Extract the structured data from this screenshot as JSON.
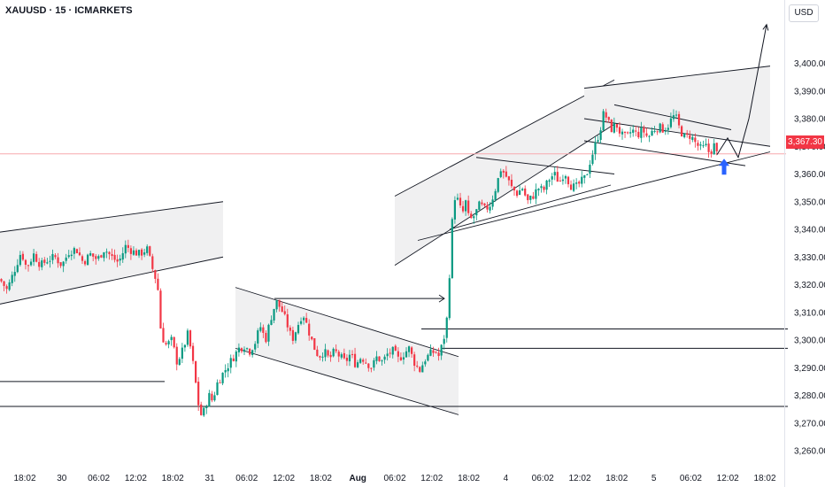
{
  "header": {
    "title": "XAUUSD · 15 · ICMARKETS",
    "currency": "USD"
  },
  "current_price_label": "3,367.30",
  "colors": {
    "up": "#089981",
    "down": "#f23645",
    "channel_fill": "#f0f0f1",
    "line": "#131722",
    "arrow": "#2962ff"
  },
  "chart_data": {
    "type": "candlestick",
    "title": "",
    "xlabel": "",
    "ylabel": "",
    "ylim": [
      3256,
      3416
    ],
    "x_ticks": [
      "18:02",
      "30",
      "06:02",
      "12:02",
      "18:02",
      "31",
      "06:02",
      "12:02",
      "18:02",
      "Aug",
      "06:02",
      "12:02",
      "18:02",
      "4",
      "06:02",
      "12:02",
      "18:02",
      "5",
      "06:02",
      "12:02",
      "18:02"
    ],
    "y_ticks": [
      {
        "value": 3400,
        "label": "3,400.00"
      },
      {
        "value": 3390,
        "label": "3,390.00"
      },
      {
        "value": 3380,
        "label": "3,380.00"
      },
      {
        "value": 3370,
        "label": "3,370.00"
      },
      {
        "value": 3360,
        "label": "3,360.00"
      },
      {
        "value": 3350,
        "label": "3,350.00"
      },
      {
        "value": 3340,
        "label": "3,340.00"
      },
      {
        "value": 3330,
        "label": "3,330.00"
      },
      {
        "value": 3320,
        "label": "3,320.00"
      },
      {
        "value": 3310,
        "label": "3,310.00"
      },
      {
        "value": 3300,
        "label": "3,300.00"
      },
      {
        "value": 3290,
        "label": "3,290.00"
      },
      {
        "value": 3280,
        "label": "3,280.00"
      },
      {
        "value": 3270,
        "label": "3,270.00"
      },
      {
        "value": 3260,
        "label": "3,260.00"
      }
    ],
    "current_price": 3367.3,
    "close_path": [
      [
        0,
        3322
      ],
      [
        8,
        3318
      ],
      [
        16,
        3325
      ],
      [
        24,
        3332
      ],
      [
        30,
        3326
      ],
      [
        38,
        3331
      ],
      [
        46,
        3327
      ],
      [
        54,
        3329
      ],
      [
        62,
        3330
      ],
      [
        70,
        3327
      ],
      [
        78,
        3332
      ],
      [
        86,
        3333
      ],
      [
        94,
        3328
      ],
      [
        102,
        3331
      ],
      [
        110,
        3329
      ],
      [
        118,
        3333
      ],
      [
        126,
        3330
      ],
      [
        134,
        3328
      ],
      [
        142,
        3334
      ],
      [
        150,
        3332
      ],
      [
        158,
        3331
      ],
      [
        166,
        3333
      ],
      [
        172,
        3326
      ],
      [
        178,
        3320
      ],
      [
        182,
        3302
      ],
      [
        188,
        3298
      ],
      [
        194,
        3300
      ],
      [
        200,
        3292
      ],
      [
        206,
        3296
      ],
      [
        212,
        3302
      ],
      [
        216,
        3296
      ],
      [
        220,
        3287
      ],
      [
        224,
        3277
      ],
      [
        228,
        3272
      ],
      [
        232,
        3276
      ],
      [
        236,
        3280
      ],
      [
        240,
        3278
      ],
      [
        246,
        3285
      ],
      [
        252,
        3288
      ],
      [
        258,
        3291
      ],
      [
        264,
        3294
      ],
      [
        270,
        3297
      ],
      [
        276,
        3298
      ],
      [
        282,
        3296
      ],
      [
        288,
        3299
      ],
      [
        294,
        3305
      ],
      [
        300,
        3300
      ],
      [
        306,
        3308
      ],
      [
        312,
        3314
      ],
      [
        318,
        3311
      ],
      [
        324,
        3306
      ],
      [
        330,
        3300
      ],
      [
        336,
        3305
      ],
      [
        342,
        3310
      ],
      [
        348,
        3304
      ],
      [
        354,
        3298
      ],
      [
        360,
        3294
      ],
      [
        366,
        3296
      ],
      [
        372,
        3293
      ],
      [
        378,
        3296
      ],
      [
        384,
        3294
      ],
      [
        390,
        3292
      ],
      [
        396,
        3295
      ],
      [
        402,
        3291
      ],
      [
        408,
        3294
      ],
      [
        414,
        3292
      ],
      [
        420,
        3290
      ],
      [
        426,
        3294
      ],
      [
        432,
        3292
      ],
      [
        438,
        3295
      ],
      [
        444,
        3296
      ],
      [
        450,
        3293
      ],
      [
        456,
        3295
      ],
      [
        462,
        3297
      ],
      [
        468,
        3292
      ],
      [
        474,
        3289
      ],
      [
        480,
        3293
      ],
      [
        486,
        3295
      ],
      [
        492,
        3296
      ],
      [
        496,
        3294
      ],
      [
        500,
        3299
      ],
      [
        504,
        3304
      ],
      [
        507,
        3318
      ],
      [
        510,
        3340
      ],
      [
        514,
        3352
      ],
      [
        518,
        3350
      ],
      [
        522,
        3345
      ],
      [
        526,
        3350
      ],
      [
        530,
        3343
      ],
      [
        536,
        3345
      ],
      [
        542,
        3349
      ],
      [
        548,
        3347
      ],
      [
        554,
        3349
      ],
      [
        560,
        3355
      ],
      [
        566,
        3362
      ],
      [
        572,
        3359
      ],
      [
        578,
        3355
      ],
      [
        584,
        3353
      ],
      [
        590,
        3355
      ],
      [
        596,
        3350
      ],
      [
        602,
        3352
      ],
      [
        608,
        3355
      ],
      [
        614,
        3354
      ],
      [
        620,
        3358
      ],
      [
        626,
        3360
      ],
      [
        632,
        3357
      ],
      [
        638,
        3361
      ],
      [
        644,
        3356
      ],
      [
        650,
        3355
      ],
      [
        656,
        3357
      ],
      [
        662,
        3359
      ],
      [
        666,
        3364
      ],
      [
        670,
        3368
      ],
      [
        674,
        3372
      ],
      [
        678,
        3376
      ],
      [
        682,
        3382
      ],
      [
        686,
        3380
      ],
      [
        690,
        3376
      ],
      [
        696,
        3378
      ],
      [
        702,
        3374
      ],
      [
        708,
        3373
      ],
      [
        714,
        3376
      ],
      [
        720,
        3374
      ],
      [
        726,
        3376
      ],
      [
        732,
        3373
      ],
      [
        738,
        3376
      ],
      [
        744,
        3377
      ],
      [
        750,
        3376
      ],
      [
        756,
        3378
      ],
      [
        760,
        3381
      ],
      [
        764,
        3380
      ],
      [
        768,
        3376
      ],
      [
        774,
        3373
      ],
      [
        780,
        3374
      ],
      [
        786,
        3371
      ],
      [
        792,
        3369
      ],
      [
        798,
        3370
      ],
      [
        802,
        3367
      ],
      [
        806,
        3371
      ],
      [
        810,
        3367
      ]
    ],
    "channels": [
      {
        "x": [
          0,
          252
        ],
        "lower": [
          3313,
          3330
        ],
        "upper": [
          3339,
          3350
        ]
      },
      {
        "x": [
          266,
          518
        ],
        "lower": [
          3297,
          3273
        ],
        "upper": [
          3319,
          3294
        ]
      },
      {
        "x": [
          446,
          694
        ],
        "lower": [
          3327,
          3378
        ],
        "upper": [
          3352,
          3394
        ]
      },
      {
        "x": [
          660,
          870
        ],
        "lower": [
          3380,
          3370
        ],
        "upper": [
          3391,
          3399
        ]
      }
    ],
    "trend_lines": [
      {
        "x": [
          472,
          870
        ],
        "y": [
          3336,
          3368
        ]
      },
      {
        "x": [
          538,
          694
        ],
        "y": [
          3366,
          3360
        ]
      },
      {
        "x": [
          508,
          690
        ],
        "y": [
          3340,
          3356
        ]
      },
      {
        "x": [
          660,
          842
        ],
        "y": [
          3372,
          3363
        ]
      },
      {
        "x": [
          694,
          826
        ],
        "y": [
          3385,
          3376
        ]
      }
    ],
    "horizontal_lines": [
      {
        "x": [
          0,
          186
        ],
        "y": 3285
      },
      {
        "x": [
          0,
          890
        ],
        "y": 3276
      },
      {
        "x": [
          476,
          890
        ],
        "y": 3304
      },
      {
        "x": [
          498,
          890
        ],
        "y": 3297
      }
    ],
    "projection_path": {
      "x": [
        810,
        822,
        834,
        846,
        866
      ],
      "y": [
        3367,
        3373,
        3366,
        3380,
        3414
      ]
    },
    "pointer_arrows": [
      {
        "x": [
          310,
          502
        ],
        "y": [
          3315,
          3315
        ]
      }
    ],
    "marker": {
      "x": 818,
      "y": 3362,
      "shape": "up-arrow"
    }
  }
}
